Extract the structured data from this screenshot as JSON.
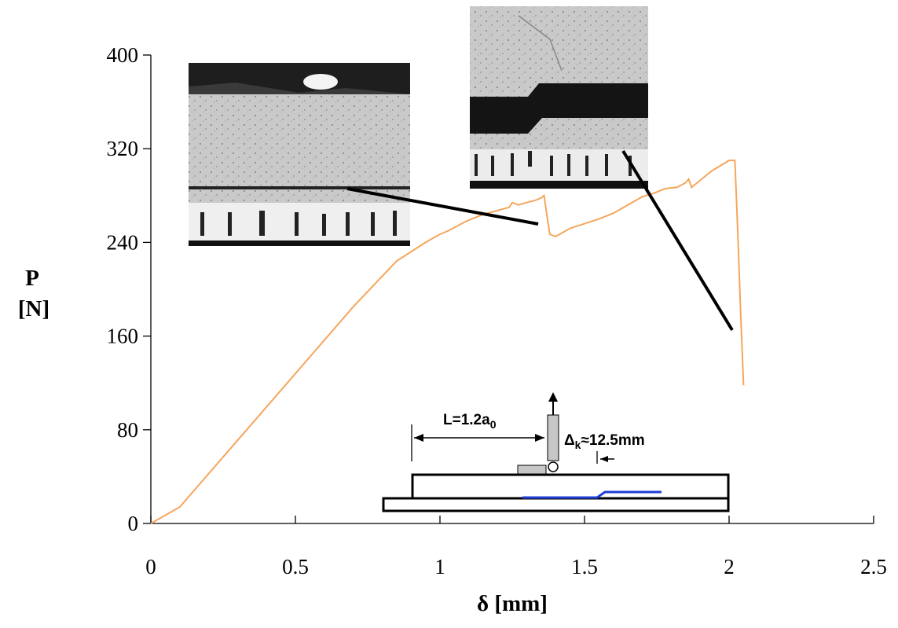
{
  "chart_data": {
    "type": "line",
    "xlabel": "δ [mm]",
    "ylabel_line1": "P",
    "ylabel_line2": "[N]",
    "xlim": [
      0,
      2.5
    ],
    "ylim": [
      0,
      400
    ],
    "x_ticks": [
      0,
      0.5,
      1,
      1.5,
      2,
      2.5
    ],
    "x_tick_labels": [
      "0",
      "0.5",
      "1",
      "1.5",
      "2",
      "2.5"
    ],
    "y_ticks": [
      0,
      80,
      160,
      240,
      320,
      400
    ],
    "y_tick_labels": [
      "0",
      "80",
      "160",
      "240",
      "320",
      "400"
    ],
    "grid": false,
    "line_color": "#f5a65b",
    "series": [
      {
        "x": [
          0,
          0.1,
          0.3,
          0.5,
          0.7,
          0.85,
          0.95,
          1.0,
          1.03,
          1.06,
          1.09,
          1.12,
          1.15,
          1.18,
          1.21,
          1.24,
          1.25,
          1.27,
          1.3,
          1.33,
          1.35,
          1.36,
          1.37,
          1.38,
          1.4,
          1.45,
          1.5,
          1.55,
          1.6,
          1.65,
          1.7,
          1.74,
          1.78,
          1.82,
          1.85,
          1.86,
          1.87,
          1.9,
          1.94,
          1.98,
          2.0,
          2.02,
          2.03,
          2.04,
          2.05
        ],
        "y": [
          0,
          14,
          71,
          128,
          185,
          224,
          240,
          247,
          250,
          254,
          258,
          261,
          264,
          266,
          268,
          270,
          274,
          272,
          274,
          276,
          278,
          280,
          263,
          247,
          245,
          252,
          256,
          260,
          265,
          272,
          279,
          282,
          286,
          287,
          291,
          294,
          287,
          293,
          301,
          307,
          310,
          310,
          250,
          180,
          118
        ]
      }
    ]
  },
  "schematic": {
    "length_label": "L=1.2a",
    "length_label_sub": "0",
    "delta_label_prefix": "Δ",
    "delta_label_sub": "k",
    "delta_label_suffix": "≈12.5mm",
    "crack_color": "#1f3fd6"
  }
}
